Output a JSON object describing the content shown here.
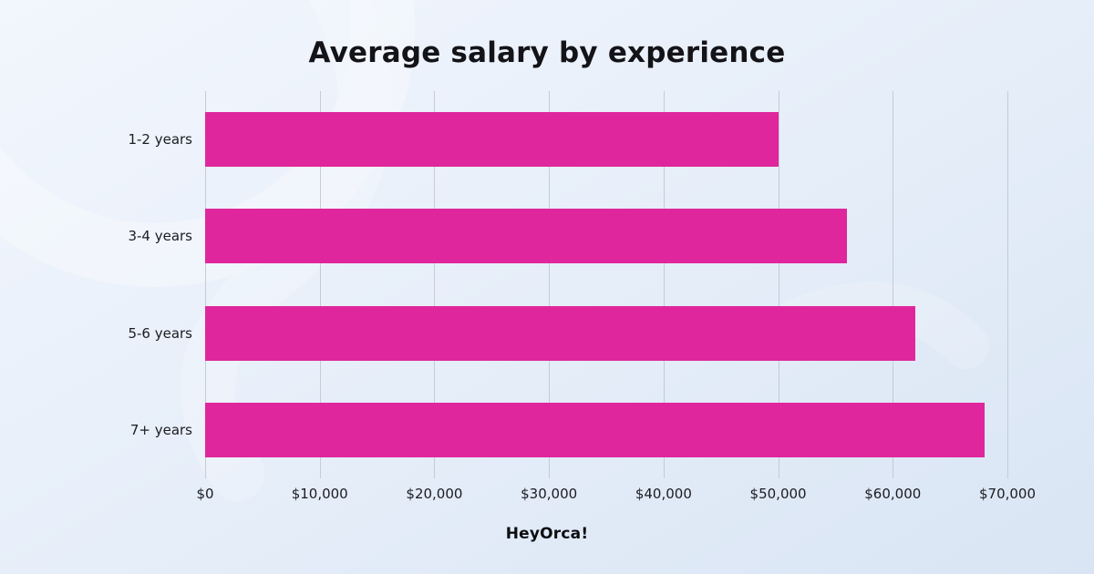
{
  "title": "Average salary by experience",
  "footer": {
    "logo": "HeyOrca!"
  },
  "colors": {
    "bar": "#e0269c",
    "gridline": "#c6cbd4",
    "background_top": "#f2f6fd",
    "background_bottom": "#d9e5f4",
    "title_text": "#141418",
    "axis_text": "#1c1c22"
  },
  "chart_data": {
    "type": "bar",
    "orientation": "horizontal",
    "title": "Average salary by experience",
    "categories": [
      "1-2 years",
      "3-4 years",
      "5-6 years",
      "7+ years"
    ],
    "values": [
      50000,
      56000,
      62000,
      68000
    ],
    "xlabel": "",
    "ylabel": "",
    "xlim": [
      0,
      70000
    ],
    "x_ticks": [
      0,
      10000,
      20000,
      30000,
      40000,
      50000,
      60000,
      70000
    ],
    "x_tick_labels": [
      "$0",
      "$10,000",
      "$20,000",
      "$30,000",
      "$40,000",
      "$50,000",
      "$60,000",
      "$70,000"
    ],
    "grid": "vertical",
    "legend": "none"
  }
}
